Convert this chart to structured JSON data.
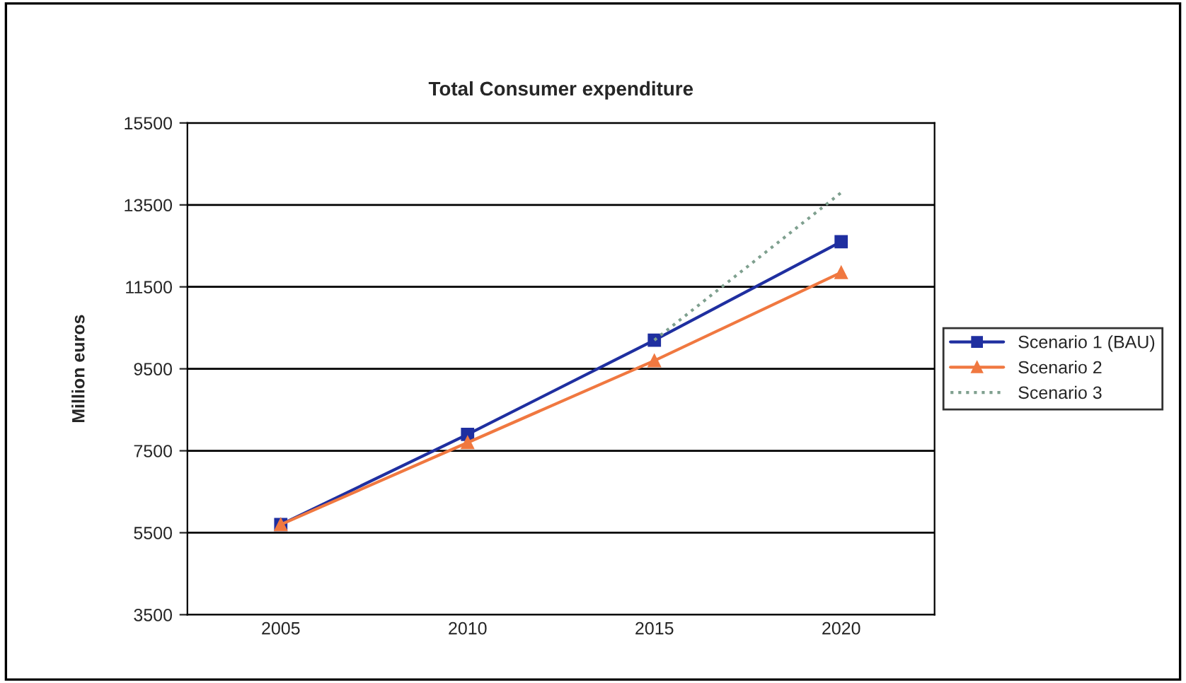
{
  "chart_data": {
    "type": "line",
    "title": "Total Consumer expenditure",
    "ylabel": "Million euros",
    "categories": [
      "2005",
      "2010",
      "2015",
      "2020"
    ],
    "series": [
      {
        "name": "Scenario 1 (BAU)",
        "color": "#1f2fa0",
        "values": [
          5700,
          7900,
          10200,
          12600
        ],
        "marker": "square",
        "line_style": "solid"
      },
      {
        "name": "Scenario 2",
        "color": "#f07840",
        "values": [
          5700,
          7700,
          9700,
          11850
        ],
        "marker": "triangle",
        "line_style": "solid"
      },
      {
        "name": "Scenario 3",
        "color": "#7fa08f",
        "values": [
          null,
          null,
          10200,
          13800
        ],
        "marker": "none",
        "line_style": "dotted"
      }
    ],
    "ylim": [
      3500,
      15500
    ],
    "yticks": [
      3500,
      5500,
      7500,
      9500,
      11500,
      13500,
      15500
    ],
    "grid": "y",
    "legend": "right"
  }
}
